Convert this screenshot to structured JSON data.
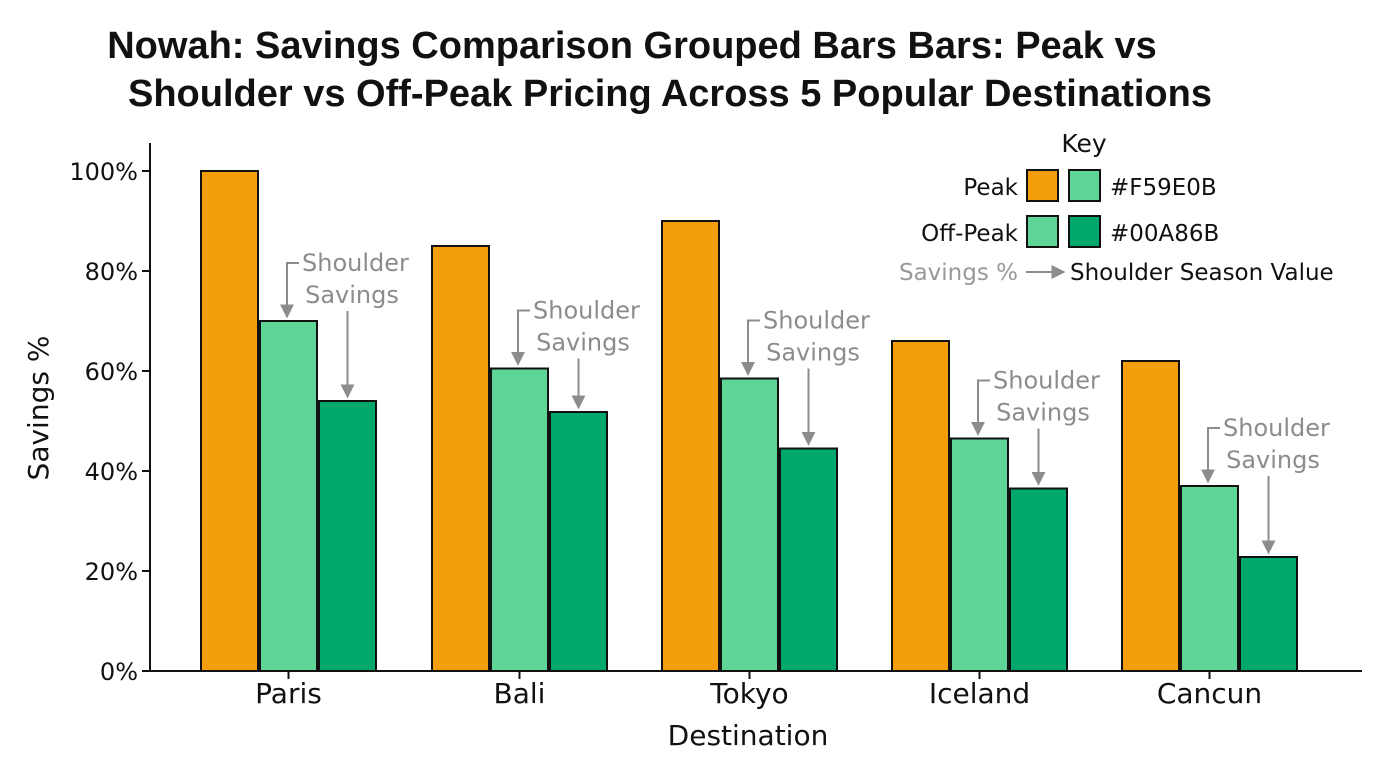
{
  "chart_data": {
    "type": "bar",
    "title_lines": [
      "Nowah: Savings Comparison Grouped Bars Bars: Peak vs",
      "Shoulder vs Off-Peak Pricing   Across 5 Popular Destinations"
    ],
    "xlabel": "Destination",
    "ylabel": "Savings %",
    "ylim": [
      0,
      100
    ],
    "yticks": [
      "0%",
      "20%",
      "40%",
      "60%",
      "80%",
      "100%"
    ],
    "categories": [
      "Paris",
      "Bali",
      "Tokyo",
      "Iceland",
      "Cancun"
    ],
    "series": [
      {
        "name": "Peak",
        "color": "#F59E0B",
        "values": [
          100,
          85,
          90,
          66,
          62
        ]
      },
      {
        "name": "",
        "color": "#5ED496",
        "values": [
          70,
          60.5,
          58.5,
          46.5,
          37
        ]
      },
      {
        "name": "",
        "color": "#00A86B",
        "values": [
          54,
          51.8,
          44.5,
          36.5,
          22.8
        ]
      }
    ],
    "grid": false,
    "legend": {
      "title": "Key",
      "position": "top-right",
      "rows": [
        {
          "label": "Peak",
          "swatches": [
            "#F59E0B",
            "#5ED496"
          ],
          "code": "#F59E0B"
        },
        {
          "label": "Off-Peak",
          "swatches": [
            "#5ED496",
            "#00A86B"
          ],
          "code": "#00A86B"
        }
      ],
      "note_left": "Savings %",
      "note_right": "Shoulder Season Value"
    },
    "annotations": {
      "line1": "Shoulder",
      "line2": "Savings"
    }
  }
}
